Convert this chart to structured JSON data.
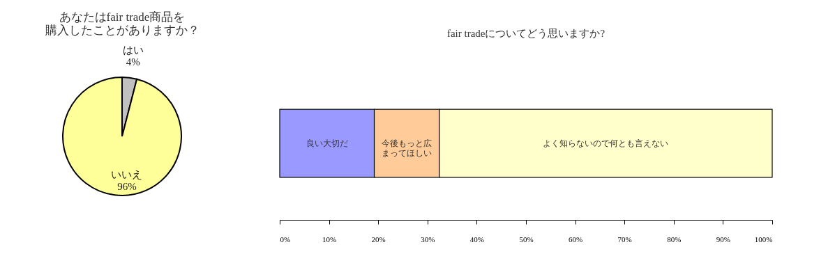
{
  "chart_data": [
    {
      "type": "pie",
      "title": "あなたはfair trade商品を購入したことがありますか？",
      "categories": [
        "はい",
        "いいえ"
      ],
      "values": [
        4,
        96
      ],
      "colors": [
        "#c0c0c0",
        "#ffff99"
      ],
      "value_labels": [
        "4%",
        "96%"
      ]
    },
    {
      "type": "bar",
      "orientation": "horizontal",
      "stacked": true,
      "title": "fair tradeについてどう思いますか?",
      "categories": [
        null
      ],
      "xlim": [
        0,
        100
      ],
      "xticks": [
        {
          "value": 0,
          "label": "0%"
        },
        {
          "value": 10,
          "label": "10%"
        },
        {
          "value": 20,
          "label": "20%"
        },
        {
          "value": 30,
          "label": "30%"
        },
        {
          "value": 40,
          "label": "40%"
        },
        {
          "value": 50,
          "label": "50%"
        },
        {
          "value": 60,
          "label": "60%"
        },
        {
          "value": 70,
          "label": "70%"
        },
        {
          "value": 80,
          "label": "80%"
        },
        {
          "value": 90,
          "label": "90%"
        },
        {
          "value": 100,
          "label": "100%"
        }
      ],
      "series": [
        {
          "name": "良い大切だ",
          "color": "#9999ff",
          "values": [
            19.2
          ]
        },
        {
          "name": "今後もっと広まってほしい",
          "color": "#ffcc99",
          "values": [
            13.2
          ]
        },
        {
          "name": "よく知らないので何とも言えない",
          "color": "#ffffcc",
          "values": [
            67.6
          ]
        }
      ]
    }
  ]
}
